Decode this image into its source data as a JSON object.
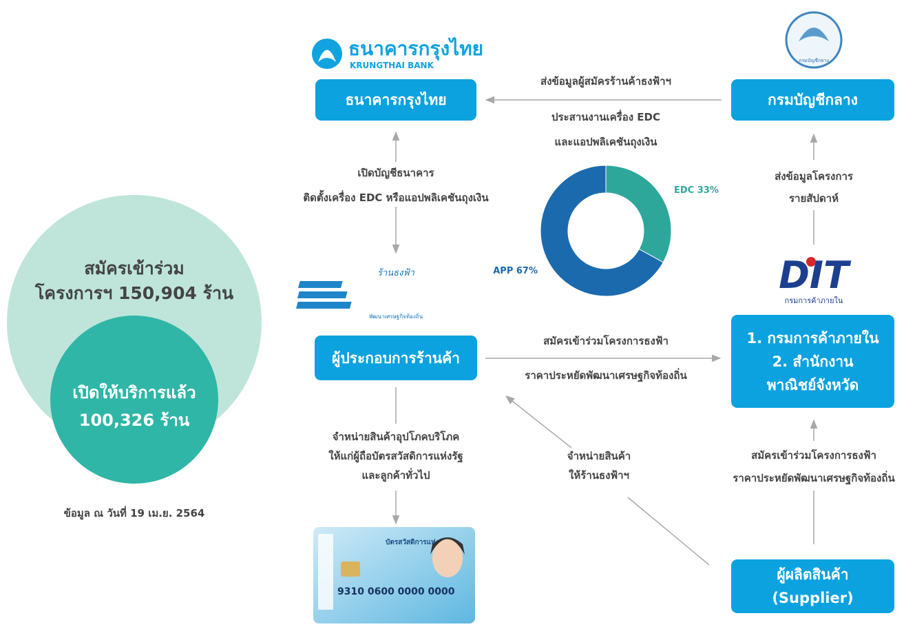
{
  "summary": {
    "registered_line1": "สมัครเข้าร่วม",
    "registered_prefix": "โครงการฯ",
    "registered_number": "150,904",
    "registered_unit": "ร้าน",
    "open_line1": "เปิดให้บริการแล้ว",
    "open_number": "100,326",
    "open_unit": "ร้าน",
    "footnote": "ข้อมูล ณ วันที่ 19 เม.ย. 2564"
  },
  "logos": {
    "ktb_thai": "ธนาคารกรุงไทย",
    "ktb_en": "KRUNGTHAI BANK",
    "cgd_seal": "กรมบัญชีกลาง",
    "thongfa_top": "ร้านธงฟ้า",
    "thongfa_bottom": "พัฒนาเศรษฐกิจท้องถิ่น",
    "dit_mark": "DIT",
    "dit_name": "กรมการค้าภายใน",
    "card_title": "บัตรสวัสดิการแห่งรัฐ",
    "card_number": "9310 0600 0000 0000"
  },
  "nodes": {
    "bank": "ธนาคารกรุงไทย",
    "cgd": "กรมบัญชีกลาง",
    "merchant": "ผู้ประกอบการร้านค้า",
    "dit": [
      "1. กรมการค้าภายใน",
      "2. สำนักงาน",
      "พาณิชย์จังหวัด"
    ],
    "supplier": [
      "ผู้ผลิตสินค้า",
      "(Supplier)"
    ]
  },
  "edges": {
    "cgd_to_bank": [
      "ส่งข้อมูลผู้สมัครร้านค้าธงฟ้าฯ",
      "ประสานงานเครื่อง EDC",
      "และแอปพลิเคชันถุงเงิน"
    ],
    "bank_merchant": [
      "เปิดบัญชีธนาคาร",
      "ติดตั้งเครื่อง EDC หรือแอปพลิเคชันถุงเงิน"
    ],
    "merchant_to_dit": [
      "สมัครเข้าร่วมโครงการธงฟ้า",
      "ราคาประหยัดพัฒนาเศรษฐกิจท้องถิ่น"
    ],
    "dit_to_cgd": [
      "ส่งข้อมูลโครงการ",
      "รายสัปดาห์"
    ],
    "supplier_to_dit": [
      "สมัครเข้าร่วมโครงการธงฟ้า",
      "ราคาประหยัดพัฒนาเศรษฐกิจท้องถิ่น"
    ],
    "merchant_to_card": [
      "จำหน่ายสินค้าอุปโภคบริโภค",
      "ให้แก่ผู้ถือบัตรสวัสดิการแห่งรัฐ",
      "และลูกค้าทั่วไป"
    ],
    "supplier_to_merchant": [
      "จำหน่ายสินค้า",
      "ให้ร้านธงฟ้าฯ"
    ]
  },
  "chart_data": {
    "type": "pie",
    "values": [
      67,
      33
    ],
    "value_labels": [
      "APP 67%",
      "EDC 33%"
    ],
    "colors": [
      "#1b6aae",
      "#2ea79b"
    ]
  }
}
